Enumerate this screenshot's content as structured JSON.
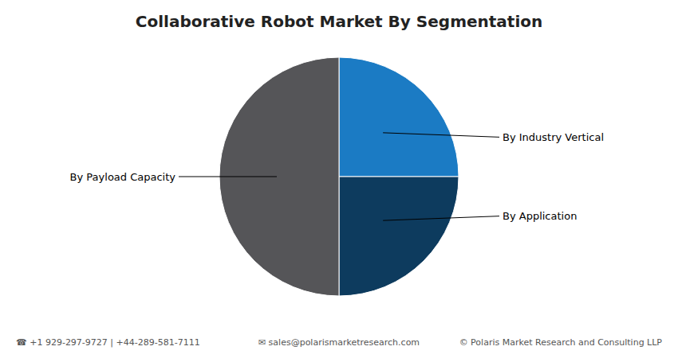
{
  "chart_data": {
    "type": "pie",
    "title": "Collaborative Robot Market By Segmentation",
    "categories": [
      "By Industry Vertical",
      "By Application",
      "By Payload Capacity"
    ],
    "values": [
      25,
      25,
      50
    ],
    "colors": [
      "#1B7BC4",
      "#0D3B5E",
      "#555558"
    ],
    "annotations": [
      "☎ +1 929-297-9727 | +44-289-581-7111",
      "✉ sales@polarismarketresearch.com",
      "© Polaris Market Research and Consulting LLP"
    ]
  }
}
